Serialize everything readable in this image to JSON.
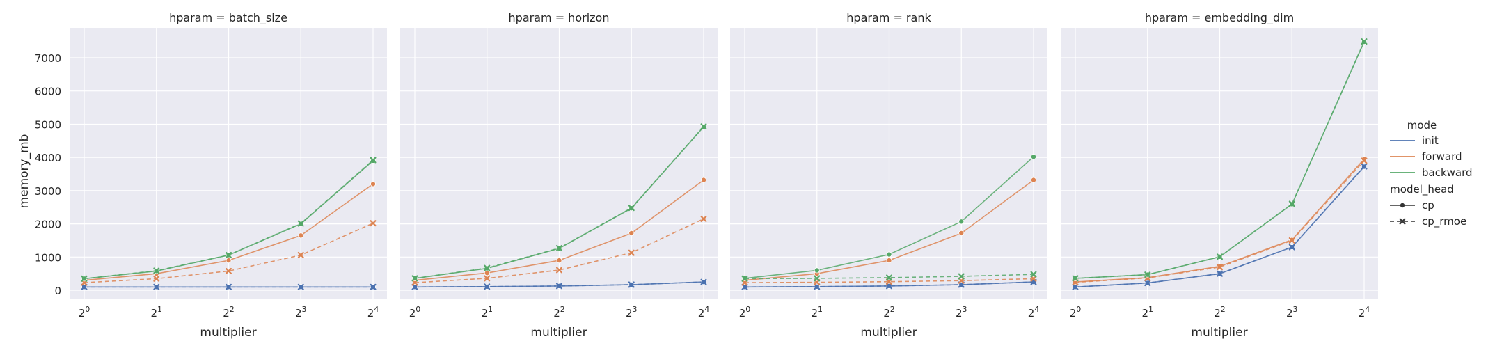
{
  "figure": {
    "ylabel": "memory_mb",
    "xlabel": "multiplier",
    "legend": {
      "placement": "right",
      "hue_title": "mode",
      "style_title": "model_head",
      "hue_entries": [
        {
          "name": "init",
          "color": "#4c72b0"
        },
        {
          "name": "forward",
          "color": "#dd8452"
        },
        {
          "name": "backward",
          "color": "#55a868"
        }
      ],
      "style_entries": [
        {
          "name": "cp",
          "marker": "circle",
          "dash": "solid"
        },
        {
          "name": "cp_rmoe",
          "marker": "x",
          "dash": "dashed"
        }
      ]
    }
  },
  "chart_data": [
    {
      "type": "line",
      "title": "hparam = batch_size",
      "xlabel": "multiplier",
      "ylabel": "memory_mb",
      "x": [
        1,
        2,
        4,
        8,
        16
      ],
      "x_scale": "log2",
      "xticks": [
        "2",
        "2",
        "2",
        "2",
        "2"
      ],
      "xtick_exponents": [
        "0",
        "1",
        "2",
        "3",
        "4"
      ],
      "ylim": [
        -250,
        7900
      ],
      "yticks": [
        0,
        1000,
        2000,
        3000,
        4000,
        5000,
        6000,
        7000
      ],
      "grid": true,
      "series": [
        {
          "name": "init",
          "model_head": "cp",
          "color": "#4c72b0",
          "values": [
            100,
            100,
            100,
            100,
            100
          ]
        },
        {
          "name": "init",
          "model_head": "cp_rmoe",
          "color": "#4c72b0",
          "values": [
            100,
            100,
            100,
            100,
            100
          ]
        },
        {
          "name": "forward",
          "model_head": "cp",
          "color": "#dd8452",
          "values": [
            300,
            500,
            900,
            1650,
            3200
          ]
        },
        {
          "name": "forward",
          "model_head": "cp_rmoe",
          "color": "#dd8452",
          "values": [
            230,
            350,
            580,
            1060,
            2020
          ]
        },
        {
          "name": "backward",
          "model_head": "cp",
          "color": "#55a868",
          "values": [
            350,
            580,
            1060,
            2000,
            3900
          ]
        },
        {
          "name": "backward",
          "model_head": "cp_rmoe",
          "color": "#55a868",
          "values": [
            350,
            590,
            1060,
            2010,
            3920
          ]
        }
      ]
    },
    {
      "type": "line",
      "title": "hparam = horizon",
      "xlabel": "multiplier",
      "x": [
        1,
        2,
        4,
        8,
        16
      ],
      "x_scale": "log2",
      "xticks": [
        "2",
        "2",
        "2",
        "2",
        "2"
      ],
      "xtick_exponents": [
        "0",
        "1",
        "2",
        "3",
        "4"
      ],
      "ylim": [
        -250,
        7900
      ],
      "grid": true,
      "series": [
        {
          "name": "init",
          "model_head": "cp",
          "color": "#4c72b0",
          "values": [
            100,
            110,
            130,
            170,
            250
          ]
        },
        {
          "name": "init",
          "model_head": "cp_rmoe",
          "color": "#4c72b0",
          "values": [
            100,
            110,
            130,
            170,
            250
          ]
        },
        {
          "name": "forward",
          "model_head": "cp",
          "color": "#dd8452",
          "values": [
            300,
            520,
            900,
            1720,
            3320
          ]
        },
        {
          "name": "forward",
          "model_head": "cp_rmoe",
          "color": "#dd8452",
          "values": [
            230,
            360,
            610,
            1130,
            2150
          ]
        },
        {
          "name": "backward",
          "model_head": "cp",
          "color": "#55a868",
          "values": [
            360,
            660,
            1260,
            2470,
            4920
          ]
        },
        {
          "name": "backward",
          "model_head": "cp_rmoe",
          "color": "#55a868",
          "values": [
            360,
            670,
            1270,
            2480,
            4930
          ]
        }
      ]
    },
    {
      "type": "line",
      "title": "hparam = rank",
      "xlabel": "multiplier",
      "x": [
        1,
        2,
        4,
        8,
        16
      ],
      "x_scale": "log2",
      "xticks": [
        "2",
        "2",
        "2",
        "2",
        "2"
      ],
      "xtick_exponents": [
        "0",
        "1",
        "2",
        "3",
        "4"
      ],
      "ylim": [
        -250,
        7900
      ],
      "grid": true,
      "series": [
        {
          "name": "init",
          "model_head": "cp",
          "color": "#4c72b0",
          "values": [
            100,
            110,
            130,
            170,
            250
          ]
        },
        {
          "name": "init",
          "model_head": "cp_rmoe",
          "color": "#4c72b0",
          "values": [
            100,
            110,
            130,
            170,
            250
          ]
        },
        {
          "name": "forward",
          "model_head": "cp",
          "color": "#dd8452",
          "values": [
            300,
            500,
            900,
            1720,
            3320
          ]
        },
        {
          "name": "forward",
          "model_head": "cp_rmoe",
          "color": "#dd8452",
          "values": [
            230,
            240,
            260,
            290,
            350
          ]
        },
        {
          "name": "backward",
          "model_head": "cp",
          "color": "#55a868",
          "values": [
            360,
            600,
            1080,
            2070,
            4020
          ]
        },
        {
          "name": "backward",
          "model_head": "cp_rmoe",
          "color": "#55a868",
          "values": [
            350,
            360,
            380,
            420,
            480
          ]
        }
      ]
    },
    {
      "type": "line",
      "title": "hparam = embedding_dim",
      "xlabel": "multiplier",
      "x": [
        1,
        2,
        4,
        8,
        16
      ],
      "x_scale": "log2",
      "xticks": [
        "2",
        "2",
        "2",
        "2",
        "2"
      ],
      "xtick_exponents": [
        "0",
        "1",
        "2",
        "3",
        "4"
      ],
      "ylim": [
        -250,
        7900
      ],
      "grid": true,
      "series": [
        {
          "name": "init",
          "model_head": "cp",
          "color": "#4c72b0",
          "values": [
            100,
            220,
            500,
            1300,
            3720
          ]
        },
        {
          "name": "init",
          "model_head": "cp_rmoe",
          "color": "#4c72b0",
          "values": [
            100,
            220,
            500,
            1300,
            3730
          ]
        },
        {
          "name": "forward",
          "model_head": "cp",
          "color": "#dd8452",
          "values": [
            250,
            380,
            720,
            1520,
            3950
          ]
        },
        {
          "name": "forward",
          "model_head": "cp_rmoe",
          "color": "#dd8452",
          "values": [
            240,
            370,
            700,
            1500,
            3900
          ]
        },
        {
          "name": "backward",
          "model_head": "cp",
          "color": "#55a868",
          "values": [
            360,
            470,
            1010,
            2590,
            7480
          ]
        },
        {
          "name": "backward",
          "model_head": "cp_rmoe",
          "color": "#55a868",
          "values": [
            360,
            470,
            1010,
            2600,
            7490
          ]
        }
      ]
    }
  ]
}
